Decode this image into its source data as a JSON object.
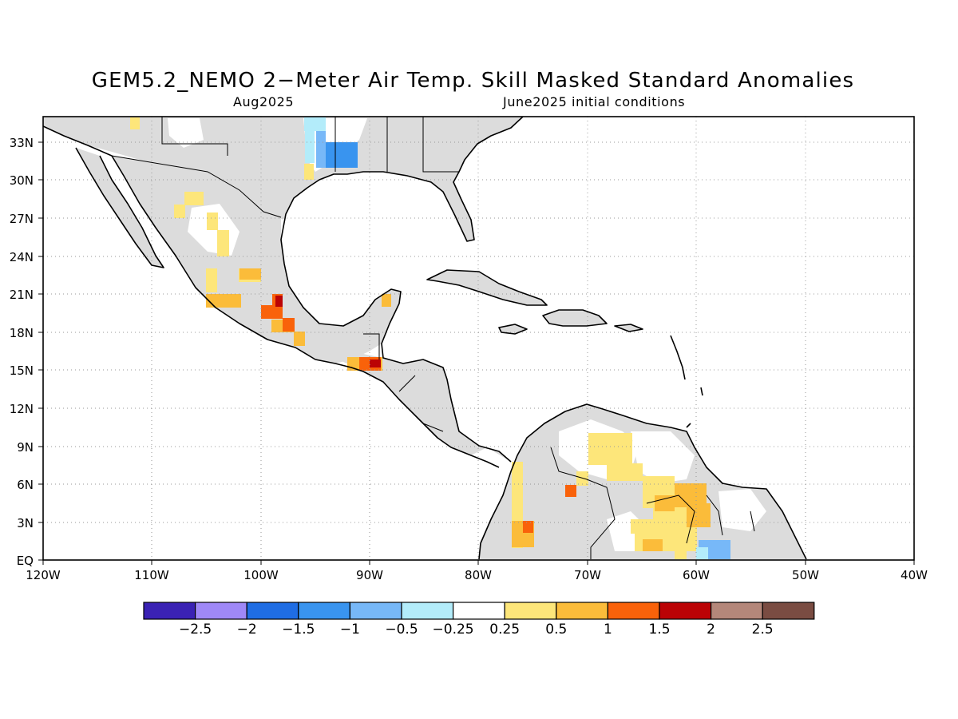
{
  "map": {
    "title": "GEM5.2_NEMO 2−Meter Air Temp. Skill Masked Standard Anomalies",
    "valid_month": "Aug2025",
    "init_conditions": "June2025 initial conditions",
    "lon_range": [
      -120,
      -40
    ],
    "lat_range": [
      0,
      35
    ],
    "lon_ticks": [
      "120W",
      "110W",
      "100W",
      "90W",
      "80W",
      "70W",
      "60W",
      "50W",
      "40W"
    ],
    "lat_ticks": [
      "EQ",
      "3N",
      "6N",
      "9N",
      "12N",
      "15N",
      "18N",
      "21N",
      "24N",
      "27N",
      "30N",
      "33N"
    ],
    "grid": "dotted",
    "colorbar": {
      "colors": [
        "#3a22b4",
        "#9f88f7",
        "#1f6de4",
        "#3994ef",
        "#77b8f8",
        "#b3ecfa",
        "#ffffff",
        "#fde67a",
        "#fbbc3a",
        "#f9620a",
        "#bb0305",
        "#b4877a",
        "#7a4c42"
      ],
      "labels": [
        "−2.5",
        "−2",
        "−1.5",
        "−1",
        "−0.5",
        "−0.25",
        "0.25",
        "0.5",
        "1",
        "1.5",
        "2",
        "2.5"
      ]
    },
    "colors": {
      "land_masked": "#dcdcdc",
      "coast": "#000000",
      "near_normal": "#fde67a",
      "above": "#fbbc3a",
      "much_above": "#f9620a",
      "extreme_above": "#bb0305",
      "below": "#77b8f8",
      "slightly_below": "#b3ecfa",
      "much_below": "#3994ef"
    }
  }
}
